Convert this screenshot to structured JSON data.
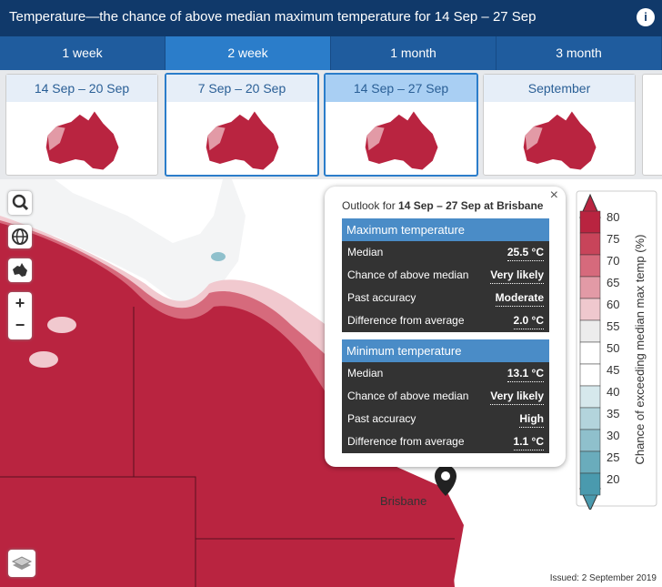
{
  "header": {
    "title": "Temperature—the chance of above median maximum temperature for 14 Sep – 27 Sep",
    "info": "i"
  },
  "tabs": [
    "1 week",
    "2 week",
    "1 month",
    "3 month"
  ],
  "thumbnails": [
    "14 Sep – 20 Sep",
    "7 Sep – 20 Sep",
    "14 Sep – 27 Sep",
    "September"
  ],
  "popup": {
    "close": "×",
    "prefix": "Outlook for",
    "subject": "14 Sep – 27 Sep at Brisbane",
    "sections": [
      {
        "heading": "Maximum temperature",
        "rows": [
          [
            "Median",
            "25.5 °C"
          ],
          [
            "Chance of above median",
            "Very likely"
          ],
          [
            "Past accuracy",
            "Moderate"
          ],
          [
            "Difference from average",
            "2.0 °C"
          ]
        ]
      },
      {
        "heading": "Minimum temperature",
        "rows": [
          [
            "Median",
            "13.1 °C"
          ],
          [
            "Chance of above median",
            "Very likely"
          ],
          [
            "Past accuracy",
            "High"
          ],
          [
            "Difference from average",
            "1.1 °C"
          ]
        ]
      }
    ]
  },
  "legend": {
    "title": "Chance of exceeding median max temp (%)",
    "ticks": [
      80,
      75,
      70,
      65,
      60,
      55,
      50,
      45,
      40,
      35,
      30,
      25,
      20
    ]
  },
  "map": {
    "place": "Brisbane",
    "zoom_in": "+",
    "zoom_out": "−"
  },
  "issued": "Issued: 2 September 2019"
}
